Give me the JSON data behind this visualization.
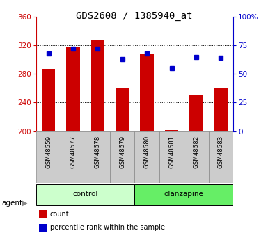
{
  "title": "GDS2608 / 1385940_at",
  "samples": [
    "GSM48559",
    "GSM48577",
    "GSM48578",
    "GSM48579",
    "GSM48580",
    "GSM48581",
    "GSM48582",
    "GSM48583"
  ],
  "counts": [
    287,
    317,
    327,
    261,
    308,
    202,
    251,
    261
  ],
  "percentiles": [
    68,
    72,
    72,
    63,
    68,
    55,
    65,
    64
  ],
  "ylim_left": [
    200,
    360
  ],
  "ylim_right": [
    0,
    100
  ],
  "yticks_left": [
    200,
    240,
    280,
    320,
    360
  ],
  "yticks_right": [
    0,
    25,
    50,
    75,
    100
  ],
  "bar_color": "#cc0000",
  "dot_color": "#0000cc",
  "bar_bottom": 200,
  "control_color": "#ccffcc",
  "olanzapine_color": "#66ee66",
  "sample_bg_color": "#cccccc",
  "agent_label": "agent",
  "legend_count_label": "count",
  "legend_pct_label": "percentile rank within the sample",
  "title_fontsize": 10,
  "tick_fontsize": 7.5
}
